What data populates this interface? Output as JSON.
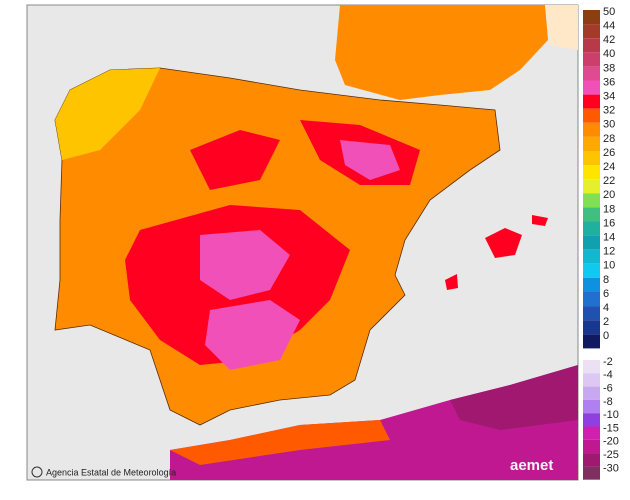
{
  "legend": {
    "upper": [
      {
        "label": 50,
        "color": "#8b3e12"
      },
      {
        "label": 44,
        "color": "#a33a2a"
      },
      {
        "label": 42,
        "color": "#b83a48"
      },
      {
        "label": 40,
        "color": "#cc3f6a"
      },
      {
        "label": 38,
        "color": "#e04a90"
      },
      {
        "label": 36,
        "color": "#f050b8"
      },
      {
        "label": 34,
        "color": "#ff0020"
      },
      {
        "label": 32,
        "color": "#ff5a00"
      },
      {
        "label": 30,
        "color": "#ff8c00"
      },
      {
        "label": 28,
        "color": "#ffa800"
      },
      {
        "label": 26,
        "color": "#ffc400"
      },
      {
        "label": 24,
        "color": "#ffe400"
      },
      {
        "label": 22,
        "color": "#e6f02a"
      },
      {
        "label": 20,
        "color": "#80e050"
      },
      {
        "label": 18,
        "color": "#40c080"
      },
      {
        "label": 16,
        "color": "#20b0a0"
      },
      {
        "label": 14,
        "color": "#10a0b0"
      },
      {
        "label": 12,
        "color": "#10b8d0"
      },
      {
        "label": 10,
        "color": "#10c8f0"
      },
      {
        "label": 8,
        "color": "#1090e0"
      },
      {
        "label": 6,
        "color": "#2070d0"
      },
      {
        "label": 4,
        "color": "#2050b0"
      },
      {
        "label": 2,
        "color": "#183890"
      },
      {
        "label": 0,
        "color": "#101a60"
      }
    ],
    "lower": [
      {
        "label": -2,
        "color": "#ece0f4"
      },
      {
        "label": -4,
        "color": "#dcc8f2"
      },
      {
        "label": -6,
        "color": "#c8a8f0"
      },
      {
        "label": -8,
        "color": "#b080f0"
      },
      {
        "label": -10,
        "color": "#9040e0"
      },
      {
        "label": -15,
        "color": "#d020b0"
      },
      {
        "label": -20,
        "color": "#c01890"
      },
      {
        "label": -25,
        "color": "#a01870"
      },
      {
        "label": -30,
        "color": "#803060"
      }
    ]
  },
  "footer": {
    "agency": "Agencia Estatal de Meteorología",
    "logo": "aemet"
  }
}
